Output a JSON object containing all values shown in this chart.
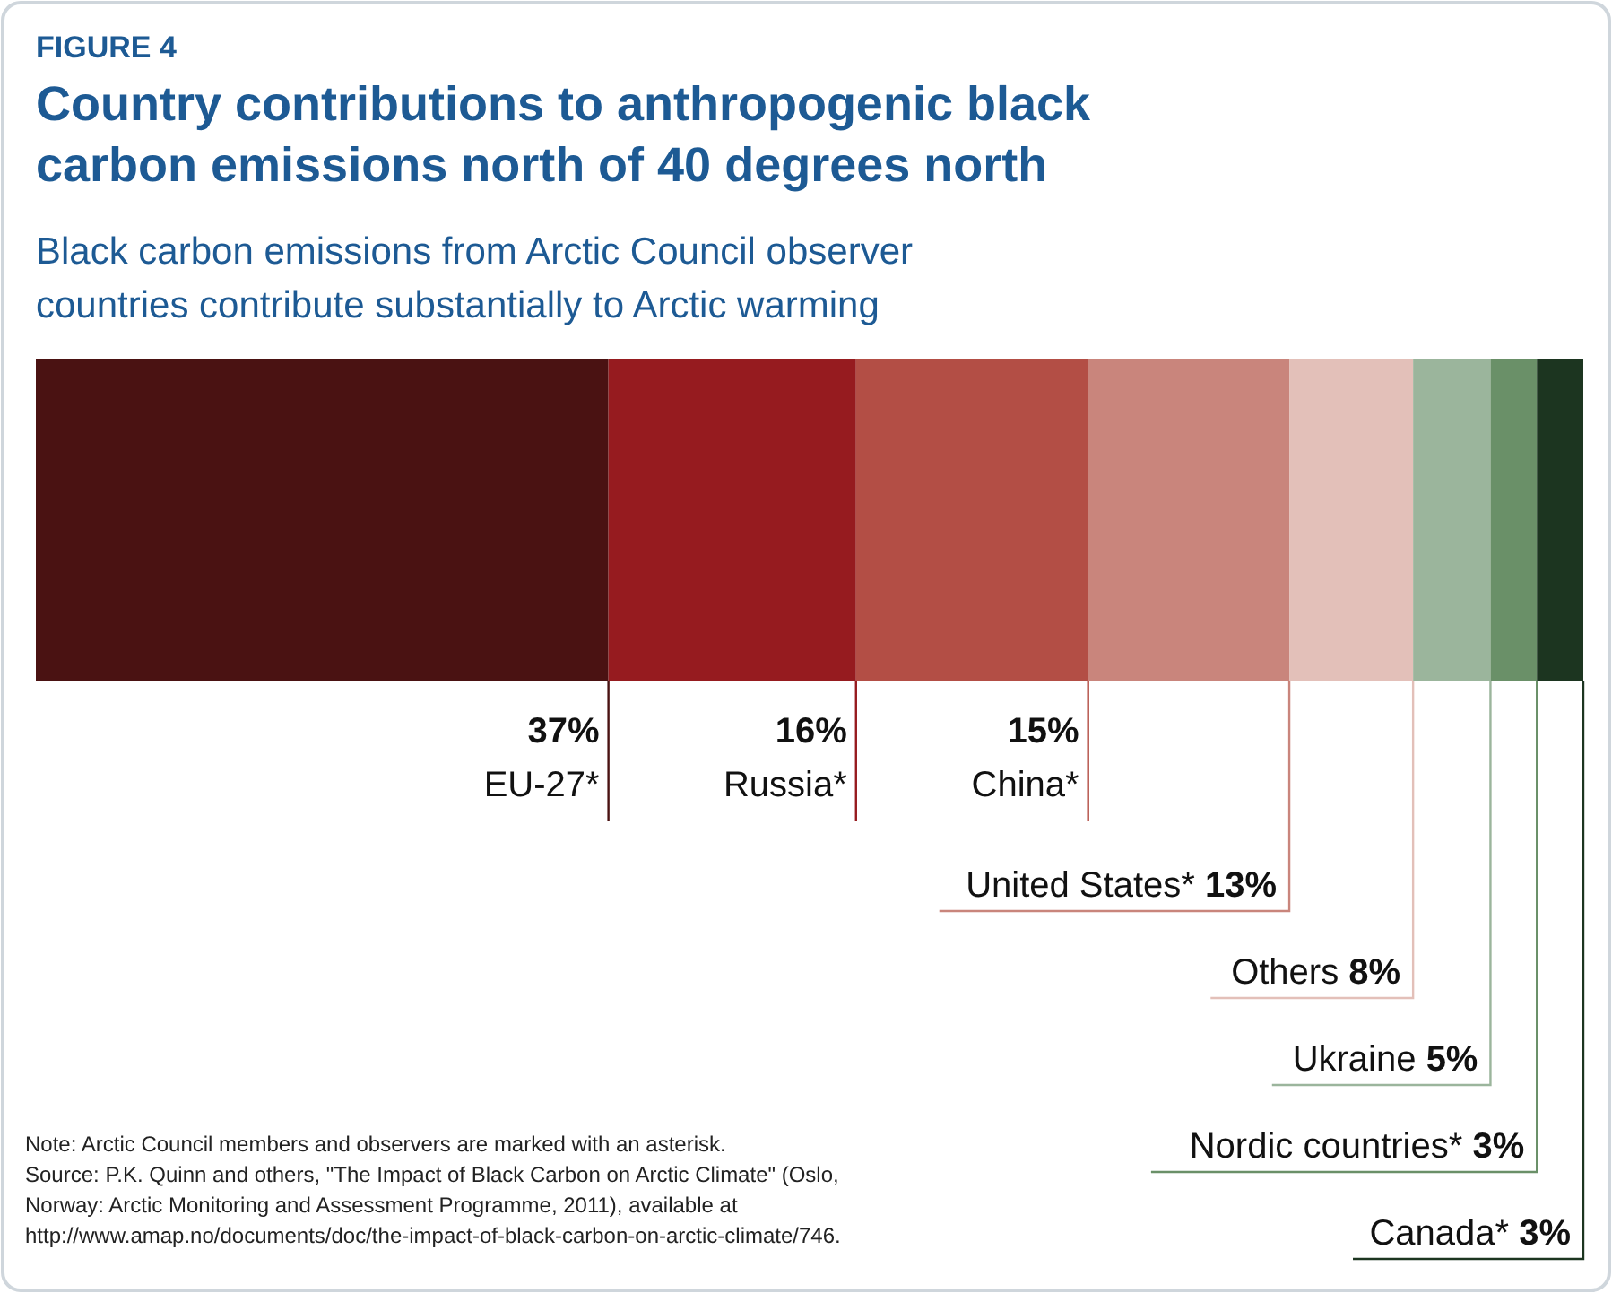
{
  "chart_data": {
    "type": "bar",
    "orientation": "horizontal",
    "stacked": true,
    "title": "Country contributions to anthropogenic black carbon emissions north of 40 degrees north",
    "subtitle": "Black carbon emissions from Arctic Council observer countries contribute substantially to Arctic warming",
    "categories": [
      null
    ],
    "xlim": [
      0,
      100
    ],
    "series": [
      {
        "name": "EU-27*",
        "color": "#4a1212",
        "values": [
          37
        ],
        "value_labels": [
          "37%"
        ]
      },
      {
        "name": "Russia*",
        "color": "#961b1f",
        "values": [
          16
        ],
        "value_labels": [
          "16%"
        ]
      },
      {
        "name": "China*",
        "color": "#b34e45",
        "values": [
          15
        ],
        "value_labels": [
          "15%"
        ]
      },
      {
        "name": "United States*",
        "color": "#c9857c",
        "values": [
          13
        ],
        "value_labels": [
          "13%"
        ]
      },
      {
        "name": "Others",
        "color": "#e3c0b9",
        "values": [
          8
        ],
        "value_labels": [
          "8%"
        ]
      },
      {
        "name": "Ukraine",
        "color": "#9bb59c",
        "values": [
          5
        ],
        "value_labels": [
          "5%"
        ]
      },
      {
        "name": "Nordic countries*",
        "color": "#6a9068",
        "values": [
          3
        ],
        "value_labels": [
          "3%"
        ]
      },
      {
        "name": "Canada*",
        "color": "#1c3520",
        "values": [
          3
        ],
        "value_labels": [
          "3%"
        ]
      }
    ],
    "annotations": [
      "FIGURE 4",
      "Note: Arctic Council members and observers are marked with an asterisk.",
      "Source: P.K. Quinn and others, \"The Impact of Black Carbon on Arctic Climate\" (Oslo, Norway: Arctic Monitoring and Assessment Programme, 2011), available at http://www.amap.no/documents/doc/the-impact-of-black-carbon-on-arctic-climate/746."
    ]
  }
}
